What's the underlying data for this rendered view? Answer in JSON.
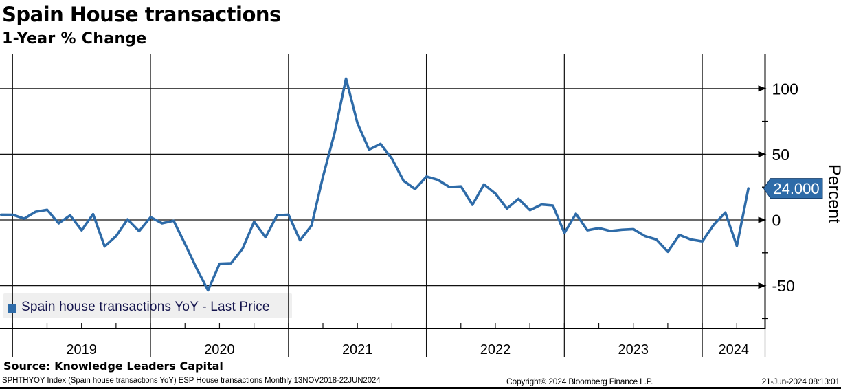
{
  "header": {
    "title": "Spain House transactions",
    "subtitle": "1-Year % Change"
  },
  "legend": {
    "label": "Spain house transactions YoY - Last Price"
  },
  "last_price_badge": "24.000",
  "y_axis": {
    "label": "Percent",
    "major_ticks": [
      100,
      50,
      0,
      -50
    ],
    "minor_ticks": [
      75,
      25,
      -25,
      -75
    ]
  },
  "x_axis": {
    "year_labels": [
      "2019",
      "2020",
      "2021",
      "2022",
      "2023",
      "2024"
    ]
  },
  "footer": {
    "source": "Source: Knowledge Leaders Capital",
    "ticker_line": "SPHTHYOY Index (Spain house transactions YoY) ESP House transactions  Monthly 13NOV2018-22JUN2024",
    "copyright": "Copyright© 2024 Bloomberg Finance L.P.",
    "timestamp": "21-Jun-2024 08:13:01"
  },
  "colors": {
    "line": "#2e6ba8",
    "badge_bg": "#2e6ba8",
    "badge_border": "#17406e",
    "badge_text": "#ffffff",
    "legend_bg": "#efefef",
    "legend_text": "#14144d",
    "grid": "#111111",
    "axis": "#000000"
  },
  "chart_data": {
    "type": "line",
    "title": "Spain House transactions",
    "subtitle": "1-Year % Change",
    "series_name": "Spain house transactions YoY - Last Price",
    "ylabel": "Percent",
    "ylim": [
      -80,
      125
    ],
    "y_ticks": [
      100,
      50,
      0,
      -50
    ],
    "grid": true,
    "legend_position": "bottom-left",
    "frequency": "Monthly",
    "range": "13NOV2018-22JUN2024",
    "last_value": 24.0,
    "x": [
      "2018-11",
      "2018-12",
      "2019-01",
      "2019-02",
      "2019-03",
      "2019-04",
      "2019-05",
      "2019-06",
      "2019-07",
      "2019-08",
      "2019-09",
      "2019-10",
      "2019-11",
      "2019-12",
      "2020-01",
      "2020-02",
      "2020-03",
      "2020-04",
      "2020-05",
      "2020-06",
      "2020-07",
      "2020-08",
      "2020-09",
      "2020-10",
      "2020-11",
      "2020-12",
      "2021-01",
      "2021-02",
      "2021-03",
      "2021-04",
      "2021-05",
      "2021-06",
      "2021-07",
      "2021-08",
      "2021-09",
      "2021-10",
      "2021-11",
      "2021-12",
      "2022-01",
      "2022-02",
      "2022-03",
      "2022-04",
      "2022-05",
      "2022-06",
      "2022-07",
      "2022-08",
      "2022-09",
      "2022-10",
      "2022-11",
      "2022-12",
      "2023-01",
      "2023-02",
      "2023-03",
      "2023-04",
      "2023-05",
      "2023-06",
      "2023-07",
      "2023-08",
      "2023-09",
      "2023-10",
      "2023-11",
      "2023-12",
      "2024-01",
      "2024-02",
      "2024-03",
      "2024-04"
    ],
    "values": [
      4.0,
      3.9,
      1.0,
      6.2,
      7.7,
      -2.6,
      3.5,
      -7.9,
      4.4,
      -20.2,
      -12.3,
      0.4,
      -8.6,
      2.1,
      -2.6,
      -0.7,
      -18.4,
      -36.8,
      -53.6,
      -33.3,
      -33.0,
      -21.9,
      -1.4,
      -13.2,
      3.5,
      4.0,
      -15.5,
      -4.3,
      33.0,
      66.0,
      107.6,
      73.5,
      53.5,
      57.9,
      46.5,
      29.8,
      23.5,
      33.0,
      30.5,
      25.0,
      25.5,
      11.5,
      27.0,
      20.0,
      8.7,
      16.0,
      7.5,
      11.7,
      11.0,
      -10.0,
      4.7,
      -7.9,
      -6.2,
      -8.4,
      -7.5,
      -7.0,
      -12.3,
      -14.9,
      -24.2,
      -11.4,
      -14.9,
      -16.3,
      -3.5,
      5.6,
      -19.8,
      24.0
    ]
  }
}
